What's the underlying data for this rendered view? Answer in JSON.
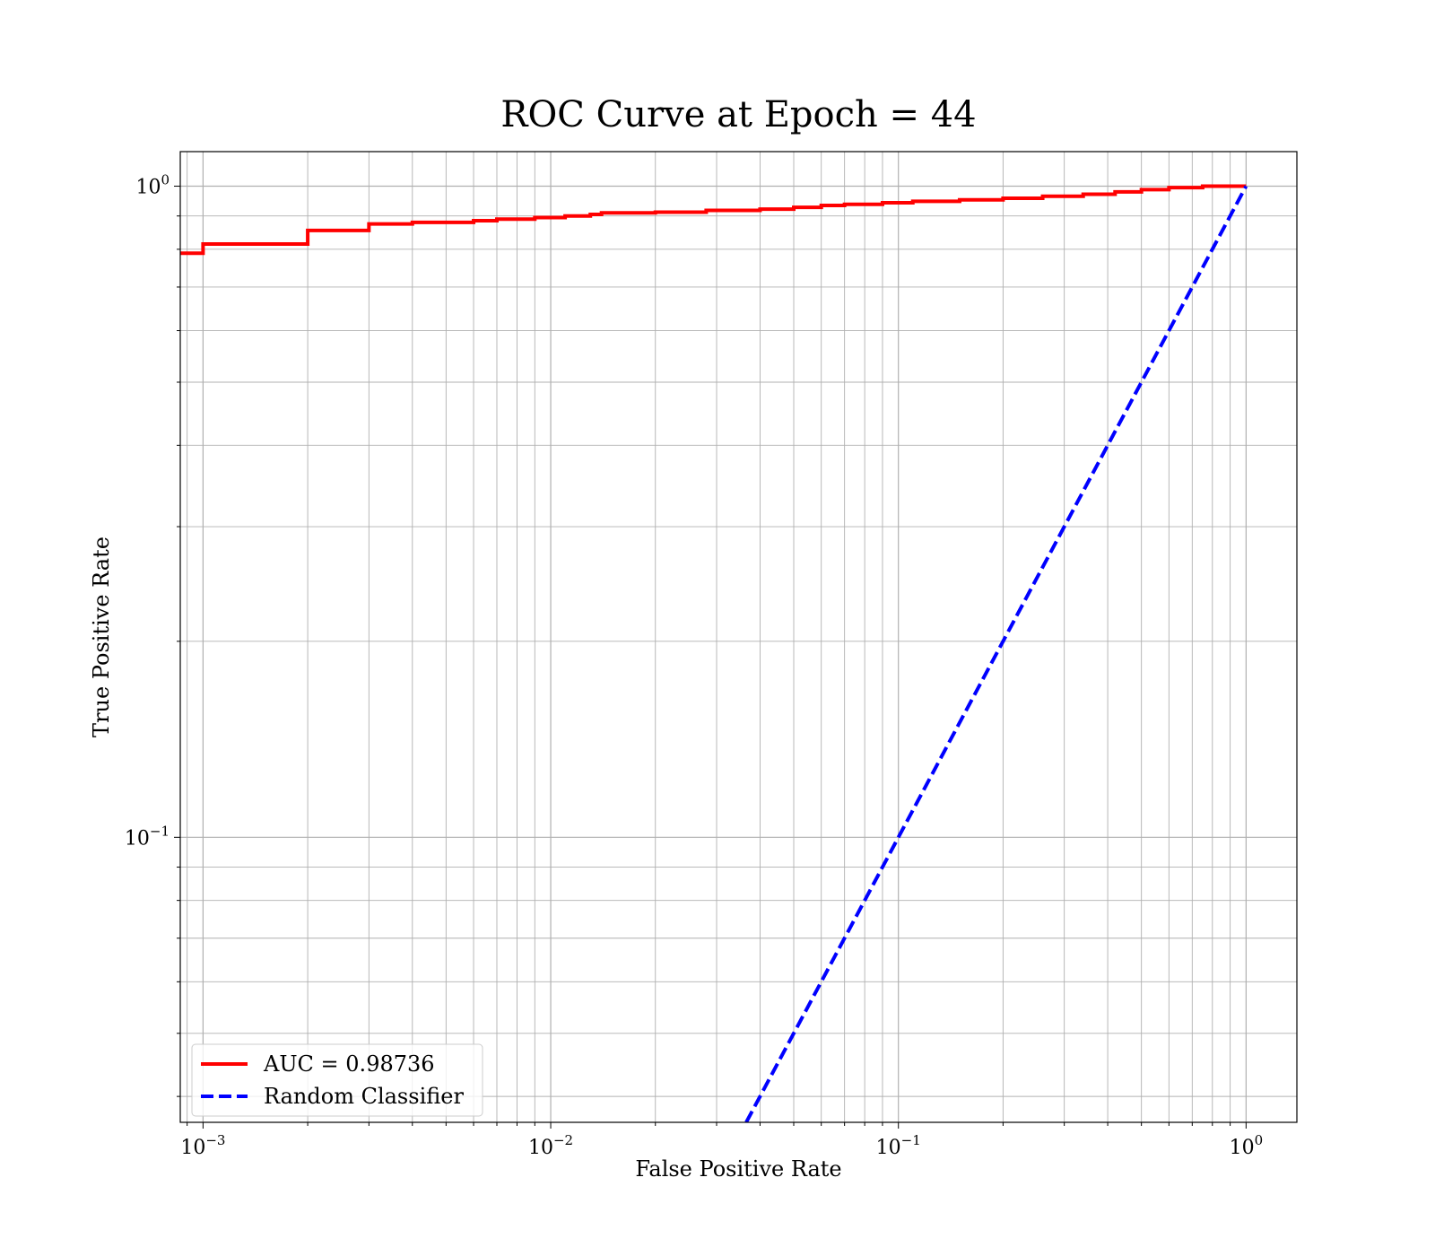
{
  "chart_data": {
    "type": "line",
    "title": "ROC Curve at Epoch = 44",
    "xlabel": "False Positive Rate",
    "ylabel": "True Positive Rate",
    "xscale": "log",
    "yscale": "log",
    "xlim": [
      0.00086,
      1.4
    ],
    "ylim": [
      0.0365,
      1.13
    ],
    "grid": "major and minor",
    "legend_position": "lower-left",
    "x_tick_labels": [
      {
        "value": 0.001,
        "base": "10",
        "exp": "−3"
      },
      {
        "value": 0.01,
        "base": "10",
        "exp": "−2"
      },
      {
        "value": 0.1,
        "base": "10",
        "exp": "−1"
      },
      {
        "value": 1,
        "base": "10",
        "exp": "0"
      }
    ],
    "y_tick_labels": [
      {
        "value": 0.1,
        "base": "10",
        "exp": "−1"
      },
      {
        "value": 1,
        "base": "10",
        "exp": "0"
      }
    ],
    "series": [
      {
        "name": "AUC = 0.98736",
        "color": "#ff0000",
        "style": "solid",
        "step": true,
        "points": [
          [
            0.00086,
            0.789
          ],
          [
            0.001,
            0.789
          ],
          [
            0.001,
            0.815
          ],
          [
            0.002,
            0.815
          ],
          [
            0.002,
            0.855
          ],
          [
            0.003,
            0.855
          ],
          [
            0.003,
            0.875
          ],
          [
            0.004,
            0.875
          ],
          [
            0.004,
            0.88
          ],
          [
            0.006,
            0.88
          ],
          [
            0.006,
            0.885
          ],
          [
            0.007,
            0.885
          ],
          [
            0.007,
            0.89
          ],
          [
            0.009,
            0.89
          ],
          [
            0.009,
            0.895
          ],
          [
            0.011,
            0.895
          ],
          [
            0.011,
            0.9
          ],
          [
            0.013,
            0.9
          ],
          [
            0.013,
            0.905
          ],
          [
            0.014,
            0.905
          ],
          [
            0.014,
            0.91
          ],
          [
            0.02,
            0.91
          ],
          [
            0.02,
            0.912
          ],
          [
            0.028,
            0.912
          ],
          [
            0.028,
            0.918
          ],
          [
            0.04,
            0.918
          ],
          [
            0.04,
            0.922
          ],
          [
            0.05,
            0.922
          ],
          [
            0.05,
            0.928
          ],
          [
            0.06,
            0.928
          ],
          [
            0.06,
            0.934
          ],
          [
            0.07,
            0.934
          ],
          [
            0.07,
            0.938
          ],
          [
            0.09,
            0.938
          ],
          [
            0.09,
            0.943
          ],
          [
            0.11,
            0.943
          ],
          [
            0.11,
            0.948
          ],
          [
            0.15,
            0.948
          ],
          [
            0.15,
            0.953
          ],
          [
            0.2,
            0.953
          ],
          [
            0.2,
            0.958
          ],
          [
            0.26,
            0.958
          ],
          [
            0.26,
            0.965
          ],
          [
            0.34,
            0.965
          ],
          [
            0.34,
            0.972
          ],
          [
            0.42,
            0.972
          ],
          [
            0.42,
            0.98
          ],
          [
            0.5,
            0.98
          ],
          [
            0.5,
            0.988
          ],
          [
            0.6,
            0.988
          ],
          [
            0.6,
            0.995
          ],
          [
            0.75,
            0.995
          ],
          [
            0.75,
            1.0
          ],
          [
            1.0,
            1.0
          ]
        ]
      },
      {
        "name": "Random Classifier",
        "color": "#0000ff",
        "style": "dashed",
        "points": [
          [
            0.0365,
            0.0365
          ],
          [
            1.0,
            1.0
          ]
        ]
      }
    ]
  }
}
